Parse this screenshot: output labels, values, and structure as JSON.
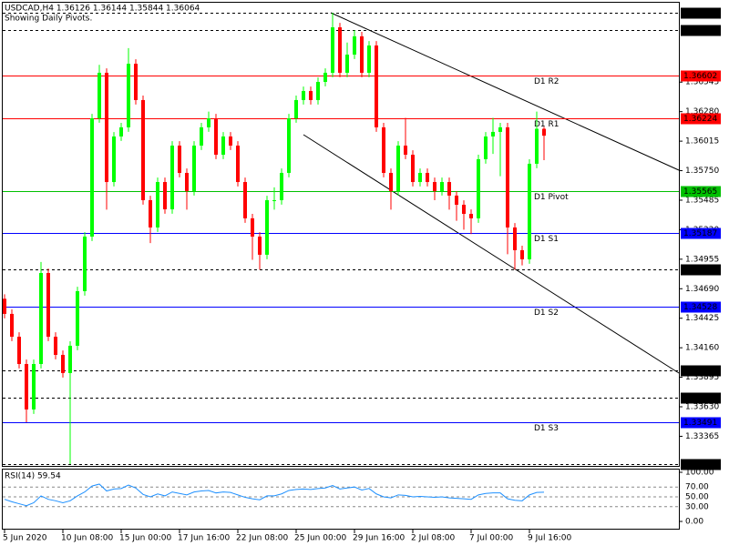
{
  "chart_data": {
    "type": "candlestick",
    "title": "USDCAD,H4  1.36126 1.36144 1.35844 1.36064",
    "subtitle": "Showing Daily Pivots.",
    "up_color": "#00ff00",
    "down_color": "#ff0000",
    "categories": [
      "5 Jun 2020",
      null,
      null,
      null,
      null,
      null,
      null,
      null,
      "10 Jun 08:00",
      null,
      null,
      null,
      null,
      null,
      null,
      null,
      "15 Jun 00:00",
      null,
      null,
      null,
      null,
      null,
      null,
      null,
      "17 Jun 16:00",
      null,
      null,
      null,
      null,
      null,
      null,
      null,
      "22 Jun 08:00",
      null,
      null,
      null,
      null,
      null,
      null,
      null,
      "25 Jun 00:00",
      null,
      null,
      null,
      null,
      null,
      null,
      null,
      "29 Jun 16:00",
      null,
      null,
      null,
      null,
      null,
      null,
      null,
      "2 Jul 08:00",
      null,
      null,
      null,
      null,
      null,
      null,
      null,
      "7 Jul 00:00",
      null,
      null,
      null,
      null,
      null,
      null,
      null,
      "9 Jul 16:00",
      null,
      null
    ],
    "open": [
      1.346,
      1.34464,
      1.34259,
      1.34014,
      1.33606,
      1.34014,
      1.34831,
      1.34259,
      1.34096,
      1.33933,
      1.34178,
      1.34668,
      1.35158,
      1.3622,
      1.36629,
      1.35648,
      1.36057,
      1.36139,
      1.3671,
      1.36384,
      1.35485,
      1.3524,
      1.35648,
      1.35403,
      1.35975,
      1.3573,
      1.35567,
      1.35975,
      1.36139,
      1.3622,
      1.35893,
      1.36057,
      1.35975,
      1.35648,
      1.35322,
      1.35158,
      1.34995,
      1.35485,
      1.35485,
      1.3573,
      1.3622,
      1.36384,
      1.36465,
      1.36384,
      1.36547,
      1.36629,
      1.37037,
      1.36629,
      1.36792,
      1.36956,
      1.36629,
      1.36874,
      1.36139,
      1.3573,
      1.35567,
      1.35975,
      1.35893,
      1.35648,
      1.3573,
      1.35648,
      1.35567,
      1.35648,
      1.35526,
      1.35444,
      1.35362,
      1.35322,
      1.35853,
      1.36057,
      1.36098,
      1.36139,
      1.3524,
      1.35036,
      1.34954,
      1.35812,
      1.36126
    ],
    "high": [
      1.3464,
      1.34504,
      1.34299,
      1.34054,
      1.34054,
      1.3493,
      1.34871,
      1.34299,
      1.34136,
      1.34218,
      1.34708,
      1.35198,
      1.3626,
      1.367,
      1.36669,
      1.36097,
      1.36179,
      1.3685,
      1.3675,
      1.36424,
      1.35525,
      1.35688,
      1.35688,
      1.36015,
      1.36015,
      1.3577,
      1.36015,
      1.36179,
      1.3628,
      1.3626,
      1.36097,
      1.36097,
      1.36015,
      1.35688,
      1.35362,
      1.35198,
      1.35525,
      1.356,
      1.3577,
      1.3626,
      1.36424,
      1.36505,
      1.36505,
      1.36587,
      1.36669,
      1.37168,
      1.37077,
      1.369,
      1.37012,
      1.36996,
      1.36914,
      1.36914,
      1.36179,
      1.3577,
      1.36015,
      1.36224,
      1.35933,
      1.3577,
      1.3577,
      1.35688,
      1.35688,
      1.35688,
      1.35566,
      1.35484,
      1.35402,
      1.35893,
      1.36097,
      1.36224,
      1.36179,
      1.36179,
      1.3528,
      1.35076,
      1.35852,
      1.3628,
      1.36144
    ],
    "low": [
      1.34424,
      1.34219,
      1.33974,
      1.33491,
      1.33566,
      1.33974,
      1.34219,
      1.34056,
      1.33893,
      1.33115,
      1.34138,
      1.34628,
      1.35118,
      1.3618,
      1.354,
      1.35608,
      1.36017,
      1.36099,
      1.36344,
      1.35445,
      1.351,
      1.352,
      1.35363,
      1.35363,
      1.3569,
      1.354,
      1.35527,
      1.35935,
      1.36099,
      1.35853,
      1.35853,
      1.35935,
      1.35608,
      1.35282,
      1.3495,
      1.34862,
      1.34955,
      1.354,
      1.35445,
      1.3569,
      1.3618,
      1.36344,
      1.36344,
      1.36344,
      1.36507,
      1.36589,
      1.36589,
      1.36589,
      1.36752,
      1.36589,
      1.36589,
      1.36099,
      1.3569,
      1.354,
      1.35527,
      1.35853,
      1.35608,
      1.35608,
      1.35608,
      1.35485,
      1.35527,
      1.354,
      1.353,
      1.3522,
      1.3518,
      1.35282,
      1.35813,
      1.359,
      1.357,
      1.35,
      1.34862,
      1.349,
      1.34914,
      1.35772,
      1.35844
    ],
    "close": [
      1.34464,
      1.34259,
      1.34014,
      1.33606,
      1.34014,
      1.34831,
      1.34259,
      1.34096,
      1.33933,
      1.34178,
      1.34668,
      1.35158,
      1.3622,
      1.36629,
      1.35648,
      1.36057,
      1.36139,
      1.3671,
      1.36384,
      1.35485,
      1.3524,
      1.35648,
      1.35403,
      1.35975,
      1.3573,
      1.35567,
      1.35975,
      1.36139,
      1.3622,
      1.35893,
      1.36057,
      1.35975,
      1.35648,
      1.35322,
      1.35158,
      1.34995,
      1.35485,
      1.35485,
      1.3573,
      1.3622,
      1.36384,
      1.36465,
      1.36384,
      1.36547,
      1.36629,
      1.37037,
      1.36629,
      1.36792,
      1.36956,
      1.36629,
      1.36874,
      1.36139,
      1.3573,
      1.35567,
      1.35975,
      1.35893,
      1.35648,
      1.3573,
      1.35648,
      1.35567,
      1.35648,
      1.35526,
      1.35444,
      1.35362,
      1.35322,
      1.35853,
      1.36057,
      1.36098,
      1.36139,
      1.3524,
      1.35036,
      1.34954,
      1.35812,
      1.36126,
      1.36064
    ],
    "ylim": [
      1.33099,
      1.37266
    ],
    "yticks": [
      {
        "value": 1.36545,
        "label": "1.36545"
      },
      {
        "value": 1.3628,
        "label": "1.36280"
      },
      {
        "value": 1.36015,
        "label": "1.36015"
      },
      {
        "value": 1.3575,
        "label": "1.35750"
      },
      {
        "value": 1.35485,
        "label": "1.35485"
      },
      {
        "value": 1.3522,
        "label": "1.35220"
      },
      {
        "value": 1.34955,
        "label": "1.34955"
      },
      {
        "value": 1.3469,
        "label": "1.34690"
      },
      {
        "value": 1.34425,
        "label": "1.34425"
      },
      {
        "value": 1.3416,
        "label": "1.34160"
      },
      {
        "value": 1.33895,
        "label": "1.33895"
      },
      {
        "value": 1.3363,
        "label": "1.33630"
      },
      {
        "value": 1.33365,
        "label": "1.33365"
      }
    ],
    "levels": [
      {
        "value": 1.37168,
        "label": "1.37168",
        "color": "#000000",
        "dashed": true
      },
      {
        "value": 1.37012,
        "label": "1.37012",
        "color": "#000000",
        "dashed": true
      },
      {
        "name": "D1 R2",
        "value": 1.36602,
        "label": "1.36602",
        "color": "#ff0000"
      },
      {
        "name": "D1 R1",
        "value": 1.36224,
        "label": "1.36224",
        "color": "#ff0000"
      },
      {
        "name": "D1 Pivot",
        "value": 1.35565,
        "label": "1.35565",
        "color": "#00c000"
      },
      {
        "name": "D1 S1",
        "value": 1.35187,
        "label": "1.35187",
        "color": "#0000ff"
      },
      {
        "value": 1.34862,
        "label": "1.34862",
        "color": "#000000",
        "dashed": true
      },
      {
        "name": "D1 S2",
        "value": 1.34528,
        "label": "1.34528",
        "color": "#0000ff"
      },
      {
        "value": 1.3396,
        "label": "1.33960",
        "color": "#000000",
        "dashed": true
      },
      {
        "value": 1.33715,
        "label": "1.33715",
        "color": "#000000",
        "dashed": true
      },
      {
        "name": "D1 S3",
        "value": 1.33491,
        "label": "1.33491",
        "color": "#0000ff"
      },
      {
        "value": 1.33115,
        "label": "1.33115",
        "color": "#000000",
        "dashed": true
      }
    ],
    "indicator": {
      "title": "RSI(14) 59.54",
      "color": "#1e90ff",
      "values": [
        45,
        40,
        36,
        32,
        38,
        52,
        45,
        42,
        38,
        42,
        52,
        60,
        72,
        76,
        62,
        66,
        67,
        74,
        68,
        55,
        50,
        56,
        52,
        60,
        57,
        54,
        60,
        62,
        63,
        58,
        60,
        59,
        54,
        49,
        46,
        44,
        52,
        52,
        56,
        63,
        65,
        66,
        65,
        67,
        68,
        73,
        66,
        68,
        70,
        64,
        67,
        56,
        50,
        48,
        54,
        53,
        50,
        51,
        50,
        49,
        50,
        48,
        47,
        46,
        45,
        54,
        57,
        58,
        58,
        46,
        43,
        42,
        54,
        59,
        59.54
      ],
      "ylim": [
        0,
        100
      ],
      "yticks": [
        {
          "value": 100,
          "label": "100.00"
        },
        {
          "value": 70,
          "label": "70.00"
        },
        {
          "value": 50,
          "label": "50.00"
        },
        {
          "value": 30,
          "label": "30.00"
        },
        {
          "value": 0,
          "label": "0.00"
        }
      ]
    }
  }
}
